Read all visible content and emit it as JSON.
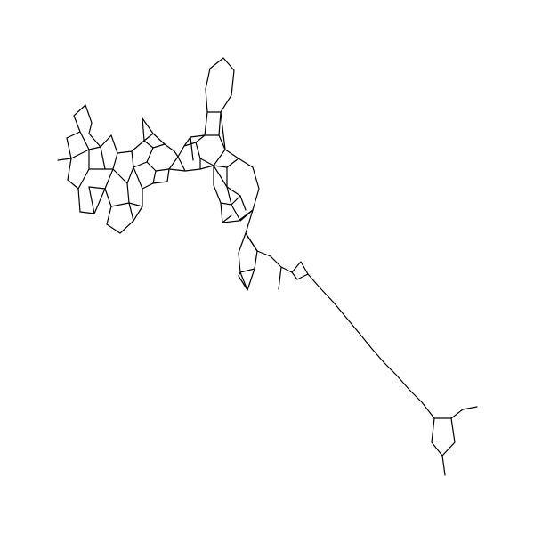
{
  "figure": {
    "type": "line-drawing",
    "line_color": "#000000",
    "background": "#ffffff"
  }
}
